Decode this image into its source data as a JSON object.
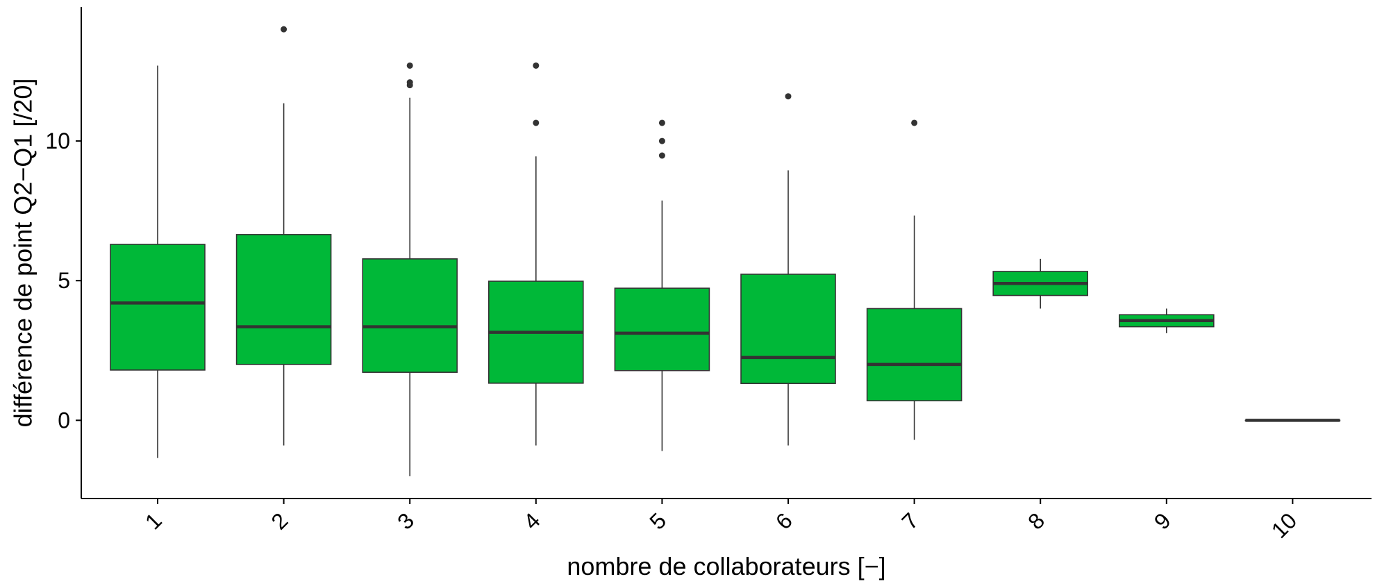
{
  "chart_data": {
    "type": "boxplot",
    "title": "",
    "xlabel": "nombre de collaborateurs [−]",
    "ylabel": "différence de point Q2−Q1 [/20]",
    "ylim": [
      -2.8,
      14.8
    ],
    "yticks": [
      0,
      5,
      10
    ],
    "grid": false,
    "legend": "none",
    "box_color": "#00B838",
    "outline_color": "#333333",
    "categories": [
      "1",
      "2",
      "3",
      "4",
      "5",
      "6",
      "7",
      "8",
      "9",
      "10"
    ],
    "boxes": [
      {
        "category": "1",
        "whisker_low": -1.35,
        "q1": 1.8,
        "median": 4.2,
        "q3": 6.3,
        "whisker_high": 12.7,
        "outliers": []
      },
      {
        "category": "2",
        "whisker_low": -0.9,
        "q1": 2.0,
        "median": 3.35,
        "q3": 6.65,
        "whisker_high": 11.35,
        "outliers": [
          14.0
        ]
      },
      {
        "category": "3",
        "whisker_low": -2.0,
        "q1": 1.72,
        "median": 3.35,
        "q3": 5.78,
        "whisker_high": 11.55,
        "outliers": [
          12.0,
          12.1,
          12.7
        ]
      },
      {
        "category": "4",
        "whisker_low": -0.9,
        "q1": 1.33,
        "median": 3.15,
        "q3": 4.98,
        "whisker_high": 9.45,
        "outliers": [
          10.65,
          12.7
        ]
      },
      {
        "category": "5",
        "whisker_low": -1.1,
        "q1": 1.78,
        "median": 3.12,
        "q3": 4.73,
        "whisker_high": 7.87,
        "outliers": [
          9.48,
          10.0,
          10.65
        ]
      },
      {
        "category": "6",
        "whisker_low": -0.9,
        "q1": 1.32,
        "median": 2.25,
        "q3": 5.23,
        "whisker_high": 8.95,
        "outliers": [
          11.6
        ]
      },
      {
        "category": "7",
        "whisker_low": -0.7,
        "q1": 0.7,
        "median": 2.0,
        "q3": 4.0,
        "whisker_high": 7.33,
        "outliers": [
          10.65
        ]
      },
      {
        "category": "8",
        "whisker_low": 4.0,
        "q1": 4.47,
        "median": 4.9,
        "q3": 5.33,
        "whisker_high": 5.78,
        "outliers": []
      },
      {
        "category": "9",
        "whisker_low": 3.12,
        "q1": 3.35,
        "median": 3.57,
        "q3": 3.78,
        "whisker_high": 4.0,
        "outliers": []
      },
      {
        "category": "10",
        "whisker_low": 0.0,
        "q1": 0.0,
        "median": 0.0,
        "q3": 0.0,
        "whisker_high": 0.0,
        "outliers": []
      }
    ]
  }
}
